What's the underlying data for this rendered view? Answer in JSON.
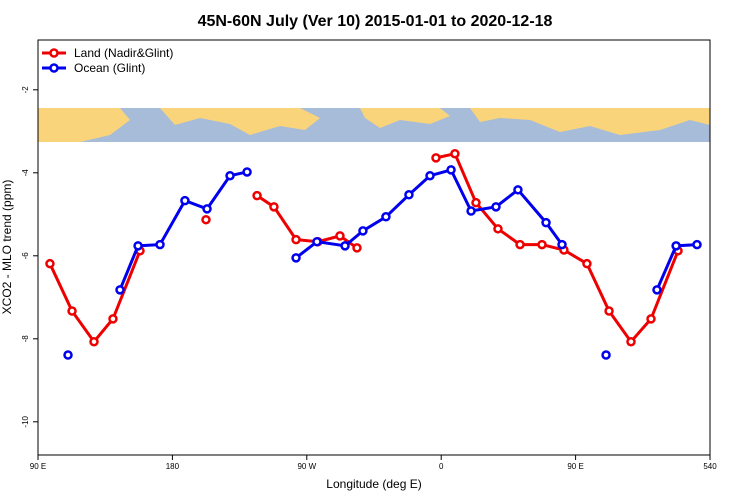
{
  "chart_data": {
    "type": "line",
    "title": "45N-60N July (Ver 10)   2015-01-01 to 2020-12-18",
    "x_label": "Longitude (deg E)",
    "y_label": "XCO2 - MLO trend (ppm)",
    "xlim": [
      90,
      540
    ],
    "xticks": [
      {
        "value": 90,
        "label": "90 E"
      },
      180,
      {
        "value": 270,
        "label": "90 W"
      },
      {
        "value": 360,
        "label": "0"
      },
      {
        "value": 450,
        "label": "90 E"
      },
      540
    ],
    "ylim": [
      -10.8,
      -0.8
    ],
    "yticks": [
      -2,
      -4,
      -6,
      -8,
      -10
    ],
    "legend": "top-left",
    "series": [
      {
        "name": "Land (Nadir&Glint)",
        "color": "#ee0000",
        "x": [
          98,
          112.8,
          127.5,
          140.2,
          158.3,
          null,
          202.5,
          null,
          236.7,
          248,
          262.8,
          277.5,
          292.2,
          303.6,
          null,
          356.5,
          369.2,
          383.3,
          398,
          412.8,
          427.5,
          442.2,
          457.6,
          472.4,
          487.1,
          500.5,
          518.6
        ],
        "values": [
          -6.19,
          -7.33,
          -8.07,
          -7.52,
          -5.88,
          null,
          -5.13,
          null,
          -4.55,
          -4.82,
          -5.61,
          -5.66,
          -5.52,
          -5.81,
          null,
          -3.64,
          -3.54,
          -4.72,
          -5.35,
          -5.73,
          -5.73,
          -5.86,
          -6.19,
          -7.33,
          -8.07,
          -7.52,
          -5.88
        ]
      },
      {
        "name": "Ocean (Glint)",
        "color": "#0000ee",
        "x": [
          110.1,
          null,
          144.9,
          157,
          171.7,
          188.4,
          203.2,
          218.6,
          230,
          null,
          262.8,
          276.8,
          295.6,
          307.6,
          323,
          338.4,
          352.5,
          366.6,
          380,
          396.7,
          411.4,
          430.2,
          440.9,
          null,
          470.4,
          null,
          504.5,
          517.3,
          531.3
        ],
        "values": [
          -8.39,
          null,
          -6.82,
          -5.76,
          -5.73,
          -4.67,
          -4.87,
          -4.07,
          -3.98,
          null,
          -6.05,
          -5.66,
          -5.76,
          -5.4,
          -5.06,
          -4.53,
          -4.07,
          -3.93,
          -4.92,
          -4.82,
          -4.41,
          -5.2,
          -5.73,
          null,
          -8.39,
          null,
          -6.82,
          -5.76,
          -5.73
        ]
      }
    ]
  }
}
